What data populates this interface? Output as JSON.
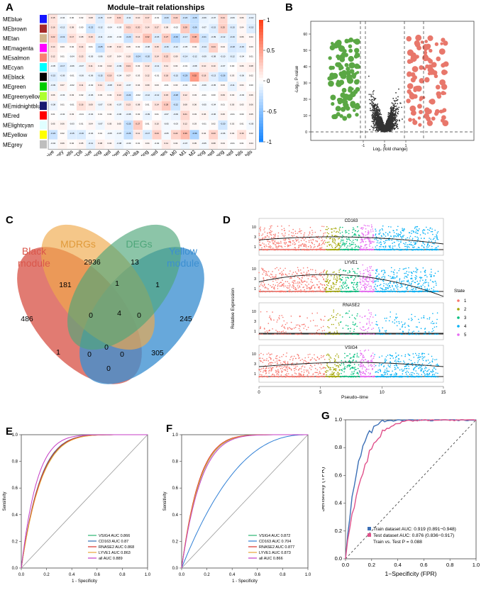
{
  "figure": {
    "panel_labels": [
      "A",
      "B",
      "C",
      "D",
      "E",
      "F",
      "G"
    ]
  },
  "panel_a": {
    "title": "Module–trait relationships",
    "modules": [
      {
        "name": "MEblue",
        "color": "#1515ff"
      },
      {
        "name": "MEbrown",
        "color": "#a52a2a"
      },
      {
        "name": "MEtan",
        "color": "#d2b48c"
      },
      {
        "name": "MEmagenta",
        "color": "#ff00ff"
      },
      {
        "name": "MEsalmon",
        "color": "#fa8072"
      },
      {
        "name": "MEcyan",
        "color": "#00ffff"
      },
      {
        "name": "MEblack",
        "color": "#000000"
      },
      {
        "name": "MEgreen",
        "color": "#00cc00"
      },
      {
        "name": "MEgreenyellow",
        "color": "#adff2f"
      },
      {
        "name": "MEmidnightblue",
        "color": "#191970"
      },
      {
        "name": "MEred",
        "color": "#ff0000"
      },
      {
        "name": "MElightcyan",
        "color": "#e0ffff"
      },
      {
        "name": "MEyellow",
        "color": "#ffff00"
      },
      {
        "name": "MEgrey",
        "color": "#bebebe"
      }
    ],
    "traits": [
      "B cells naive",
      "B cells memory",
      "Plasma cells",
      "T cells CD8",
      "T cells CD4 naive",
      "T cells CD4 memory resting",
      "T cells CD4 memory activated",
      "T cells follicular helper",
      "T cells regulatory (Tregs)",
      "T cells gamma delta",
      "NK cells resting",
      "NK cells activated",
      "Monocytes",
      "Macrophages M0",
      "Macrophages M1",
      "Macrophages M2",
      "Dendritic cells resting",
      "Dendritic cells activated",
      "Mast cells resting",
      "Mast cells activated",
      "Eosinophils",
      "Neutrophils"
    ],
    "colorbar_ticks": [
      "1",
      "0.5",
      "0",
      "-0.5",
      "-1"
    ],
    "cell_values": [
      [
        0.15,
        -0.04,
        0.0,
        0.02,
        0.08,
        -0.15,
        0.07,
        0.21,
        -0.11,
        0.1,
        0.17,
        -0.01,
        -0.2,
        0.22,
        -0.2,
        -0.26,
        -0.09,
        -0.07,
        0.21,
        -0.06,
        0.06,
        -0.1
      ],
      [
        0.16,
        -0.12,
        0.09,
        0.0,
        -0.22,
        -0.12,
        -0.04,
        -0.03,
        0.21,
        0.2,
        0.14,
        0.17,
        0.08,
        -0.02,
        0.28,
        -0.26,
        -0.07,
        -0.15,
        0.25,
        -0.15,
        0.04,
        -0.15
      ],
      [
        0.22,
        -0.19,
        0.17,
        0.08,
        0.16,
        -0.11,
        -0.06,
        -0.04,
        -0.23,
        0.14,
        0.32,
        -0.15,
        0.27,
        -0.33,
        -0.17,
        0.38,
        -0.21,
        -0.09,
        -0.12,
        -0.16,
        0.06,
        0.04
      ],
      [
        0.14,
        0.03,
        0.02,
        0.14,
        0.01,
        -0.25,
        0.08,
        0.12,
        0.05,
        0.02,
        -0.08,
        0.15,
        -0.16,
        -0.12,
        -0.05,
        0.04,
        -0.14,
        0.24,
        0.04,
        -0.18,
        -0.15,
        0.03
      ],
      [
        0.12,
        0.01,
        -0.04,
        0.13,
        -0.05,
        -0.06,
        0.07,
        0.04,
        0.1,
        -0.24,
        -0.2,
        0.14,
        0.22,
        0.09,
        -0.14,
        -0.12,
        -0.09,
        -0.08,
        -0.1,
        -0.12,
        -0.04,
        0.01
      ],
      [
        -0.05,
        -0.17,
        -0.06,
        -0.07,
        0.11,
        0.04,
        0.1,
        -0.09,
        0.21,
        0.03,
        0.12,
        -0.11,
        0.11,
        0.04,
        -0.01,
        -0.08,
        0.1,
        0.1,
        -0.07,
        0.0,
        0.06,
        0.08
      ],
      [
        -0.15,
        -0.09,
        -0.01,
        -0.06,
        -0.06,
        -0.15,
        0.19,
        -0.04,
        0.07,
        0.03,
        0.12,
        -0.01,
        0.18,
        -0.15,
        -0.29,
        0.52,
        0.18,
        -0.13,
        -0.26,
        0.03,
        -0.06,
        0.02
      ],
      [
        -0.09,
        0.07,
        -0.02,
        0.11,
        -0.02,
        0.11,
        -0.08,
        0.1,
        -0.07,
        0.04,
        0.09,
        0.03,
        -0.01,
        0.03,
        -0.04,
        0.01,
        -0.06,
        -0.05,
        0.03,
        -0.11,
        0.04,
        0.0
      ],
      [
        0.06,
        -0.03,
        0.03,
        0.02,
        -0.06,
        0.03,
        0.03,
        0.13,
        -0.24,
        -0.02,
        -0.12,
        -0.12,
        0.15,
        -0.28,
        0.12,
        0.03,
        -0.01,
        0.0,
        0.09,
        0.03,
        -0.03,
        0.06
      ],
      [
        -0.08,
        0.01,
        -0.01,
        0.16,
        0.09,
        -0.07,
        0.06,
        -0.07,
        0.13,
        0.08,
        0.01,
        0.14,
        0.28,
        -0.22,
        0.08,
        0.06,
        -0.05,
        -0.04,
        0.01,
        0.05,
        0.03,
        0.06
      ],
      [
        0.01,
        -0.02,
        0.03,
        -0.01,
        -0.04,
        0.01,
        0.02,
        -0.06,
        -0.08,
        0.02,
        -0.09,
        0.01,
        -0.07,
        -0.09,
        0.21,
        0.03,
        0.06,
        -0.06,
        0.06,
        -0.01,
        0.0,
        0.05
      ],
      [
        0.05,
        0.06,
        -0.03,
        0.01,
        0.04,
        -0.07,
        0.05,
        0.05,
        -0.25,
        0.27,
        0.01,
        0.1,
        -0.05,
        -0.03,
        0.12,
        0.03,
        -0.01,
        0.02,
        -0.2,
        0.02,
        0.01,
        -0.05
      ],
      [
        -0.23,
        0.02,
        -0.15,
        -0.16,
        -0.04,
        0.01,
        -0.05,
        -0.07,
        -0.26,
        0.11,
        -0.17,
        0.24,
        -0.05,
        0.22,
        0.36,
        -0.36,
        0.04,
        0.23,
        -0.06,
        0.04,
        0.16,
        0.02
      ],
      [
        -0.04,
        0.06,
        0.02,
        0.05,
        -0.11,
        0.08,
        0.04,
        -0.08,
        -0.03,
        0.01,
        0.04,
        -0.02,
        0.11,
        0.04,
        -0.07,
        0.05,
        -0.05,
        0.08,
        0.04,
        -0.01,
        0.01,
        0.04
      ]
    ]
  },
  "panel_b": {
    "xlabel": "Log₂ (fold change)",
    "ylabel": "-Log₁₀ P-value",
    "x_ticks": [
      "-1",
      "0",
      "1"
    ],
    "y_ticks": [
      "60",
      "50",
      "40",
      "30",
      "20",
      "10",
      "0"
    ],
    "colors": {
      "down": "#5aa744",
      "up": "#e8776b",
      "ns": "#333333"
    }
  },
  "panel_c": {
    "sets": [
      {
        "name": "Black\nmodule",
        "color": "#d9564a"
      },
      {
        "name": "MDRGs",
        "color": "#f0a94a"
      },
      {
        "name": "DEGs",
        "color": "#4ea67a"
      },
      {
        "name": "Yellow\nmodule",
        "color": "#3c8fd1"
      }
    ],
    "set_labels": [
      "Black",
      "module",
      "MDRGs",
      "DEGs",
      "Yellow",
      "module"
    ],
    "counts": [
      "486",
      "2936",
      "13",
      "245",
      "181",
      "1",
      "1",
      "0",
      "4",
      "0",
      "1",
      "0",
      "0",
      "305",
      "0"
    ]
  },
  "panel_d": {
    "genes": [
      "CD163",
      "LYVE1",
      "RNASE2",
      "VSIG4"
    ],
    "xlabel": "Pseudo–time",
    "ylabel": "Relative Expression",
    "x_ticks": [
      "0",
      "5",
      "10",
      "15"
    ],
    "legend_title": "State",
    "states": [
      {
        "label": "1",
        "color": "#f8766d"
      },
      {
        "label": "2",
        "color": "#a3a500"
      },
      {
        "label": "3",
        "color": "#00bf7d"
      },
      {
        "label": "4",
        "color": "#00b0f6"
      },
      {
        "label": "5",
        "color": "#e76bf3"
      }
    ]
  },
  "chart_data": [
    {
      "type": "line",
      "panel": "E",
      "xlabel": "1 - Specificity",
      "ylabel": "Sensitivity",
      "xlim": [
        0,
        1
      ],
      "ylim": [
        0,
        1
      ],
      "x_ticks": [
        "0.0",
        "0.2",
        "0.4",
        "0.6",
        "0.8",
        "1.0"
      ],
      "y_ticks": [
        "0.0",
        "0.2",
        "0.4",
        "0.6",
        "0.8",
        "1.0"
      ],
      "series": [
        {
          "name": "VSIG4 AUC 0.866",
          "color": "#2bb673",
          "auc": 0.866
        },
        {
          "name": "CD163 AUC 0.87",
          "color": "#2f6fb5",
          "auc": 0.87
        },
        {
          "name": "RNASE2 AUC 0.868",
          "color": "#d9312a",
          "auc": 0.868
        },
        {
          "name": "LYVE1 AUC 0.863",
          "color": "#e8a33a",
          "auc": 0.863
        },
        {
          "name": "all AUC 0.889",
          "color": "#c43cc4",
          "auc": 0.889
        }
      ]
    },
    {
      "type": "line",
      "panel": "F",
      "xlabel": "1 - Specificity",
      "ylabel": "Sensitivity",
      "xlim": [
        0,
        1
      ],
      "ylim": [
        0,
        1
      ],
      "x_ticks": [
        "0.0",
        "0.2",
        "0.4",
        "0.6",
        "0.8",
        "1.0"
      ],
      "y_ticks": [
        "0.0",
        "0.2",
        "0.4",
        "0.6",
        "0.8",
        "1.0"
      ],
      "series": [
        {
          "name": "VSIG4 AUC 0.872",
          "color": "#2bb673",
          "auc": 0.872
        },
        {
          "name": "CD163 AUC 0.704",
          "color": "#2f7fd5",
          "auc": 0.704
        },
        {
          "name": "RNASE2 AUC 0.877",
          "color": "#d9312a",
          "auc": 0.877
        },
        {
          "name": "LYVE1 AUC 0.873",
          "color": "#e8a33a",
          "auc": 0.873
        },
        {
          "name": "all AUC 0.866",
          "color": "#c43cc4",
          "auc": 0.866
        }
      ]
    },
    {
      "type": "line",
      "panel": "G",
      "xlabel": "1−Specificity (FPR)",
      "ylabel": "Sensitivity (TPR)",
      "xlim": [
        0,
        1
      ],
      "ylim": [
        0,
        1
      ],
      "x_ticks": [
        "0.0",
        "0.2",
        "0.4",
        "0.6",
        "0.8",
        "1.0"
      ],
      "y_ticks": [
        "0.0",
        "0.2",
        "0.4",
        "0.6",
        "0.8",
        "1.0"
      ],
      "series": [
        {
          "name": "Train dataset AUC: 0.919 (0.891−0.948)",
          "color": "#3b6fb6",
          "auc": 0.919
        },
        {
          "name": "Test dataset AUC: 0.876 (0.836−0.917)",
          "color": "#e0508a",
          "auc": 0.876
        }
      ],
      "annotation": "Train vs. Test P = 0.088"
    }
  ]
}
